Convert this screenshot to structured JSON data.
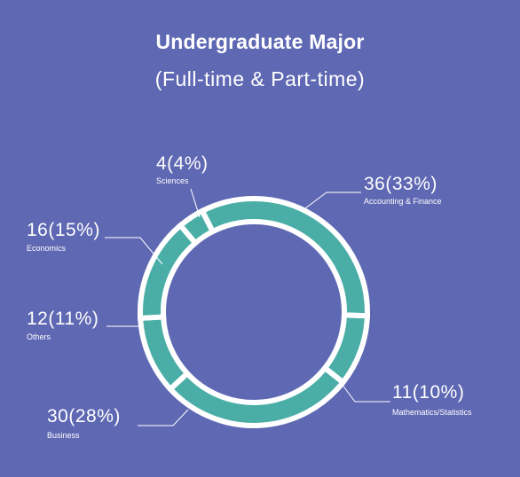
{
  "chart_data": {
    "type": "pie",
    "title": "Undergraduate Major",
    "subtitle": "(Full-time & Part-time)",
    "slices": [
      {
        "label": "Accounting & Finance",
        "value": 36,
        "display": "36(33%)"
      },
      {
        "label": "Mathematics/Statistics",
        "value": 11,
        "display": "11(10%)"
      },
      {
        "label": "Business",
        "value": 30,
        "display": "30(28%)"
      },
      {
        "label": "Others",
        "value": 12,
        "display": "12(11%)"
      },
      {
        "label": "Economics",
        "value": 16,
        "display": "16(15%)"
      },
      {
        "label": "Sciences",
        "value": 4,
        "display": "4(4%)"
      }
    ],
    "colors": {
      "background": "#5f68b3",
      "slice": "#4aaea6",
      "separator": "#ffffff"
    }
  }
}
